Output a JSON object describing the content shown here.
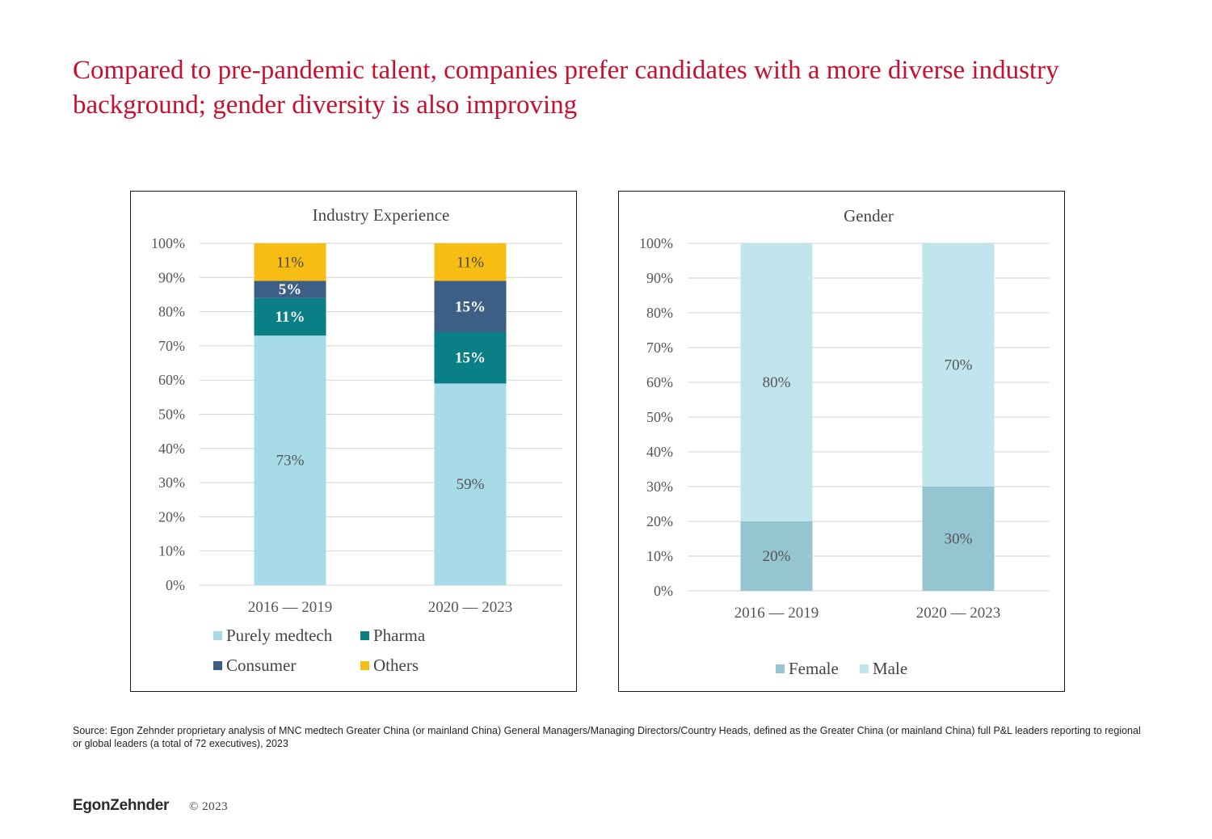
{
  "slide": {
    "title": "Compared to pre-pandemic talent, companies prefer candidates with a more diverse industry background; gender diversity is also improving",
    "source": "Source: Egon Zehnder proprietary analysis of MNC medtech Greater China (or mainland China) General Managers/Managing Directors/Country Heads, defined as the Greater China (or mainland China) full P&L leaders reporting to regional or global leaders (a total of 72 executives), 2023",
    "brand": "EgonZehnder",
    "copyright": "© 2023"
  },
  "chart_data": [
    {
      "type": "bar",
      "stacked": true,
      "title": "Industry Experience",
      "categories": [
        "2016 — 2019",
        "2020 — 2023"
      ],
      "series": [
        {
          "name": "Purely medtech",
          "values": [
            73,
            59
          ],
          "labels": [
            "73%",
            "59%"
          ],
          "color": "#a8dbe8",
          "label_color": "#555555"
        },
        {
          "name": "Pharma",
          "values": [
            11,
            15
          ],
          "labels": [
            "11%",
            "15%"
          ],
          "color": "#0a7f86",
          "label_color": "#ffffff"
        },
        {
          "name": "Consumer",
          "values": [
            5,
            15
          ],
          "labels": [
            "5%",
            "15%"
          ],
          "color": "#3d5f86",
          "label_color": "#ffffff"
        },
        {
          "name": "Others",
          "values": [
            11,
            11
          ],
          "labels": [
            "11%",
            "11%"
          ],
          "color": "#f8bd12",
          "label_color": "#444444"
        }
      ],
      "ylim": [
        0,
        100
      ],
      "yticks": [
        "0%",
        "10%",
        "20%",
        "30%",
        "40%",
        "50%",
        "60%",
        "70%",
        "80%",
        "90%",
        "100%"
      ],
      "grid": true,
      "legend_position": "bottom",
      "legend": [
        {
          "name": "Purely medtech",
          "color": "#a8dbe8"
        },
        {
          "name": "Pharma",
          "color": "#0a7f86"
        },
        {
          "name": "Consumer",
          "color": "#3d5f86"
        },
        {
          "name": "Others",
          "color": "#f8bd12"
        }
      ]
    },
    {
      "type": "bar",
      "stacked": true,
      "title": "Gender",
      "categories": [
        "2016 — 2019",
        "2020 — 2023"
      ],
      "series": [
        {
          "name": "Female",
          "values": [
            20,
            30
          ],
          "labels": [
            "20%",
            "30%"
          ],
          "color": "#94c5d1",
          "label_color": "#555555"
        },
        {
          "name": "Male",
          "values": [
            80,
            70
          ],
          "labels": [
            "80%",
            "70%"
          ],
          "color": "#c0e5ec",
          "label_color": "#555555"
        }
      ],
      "ylim": [
        0,
        100
      ],
      "yticks": [
        "0%",
        "10%",
        "20%",
        "30%",
        "40%",
        "50%",
        "60%",
        "70%",
        "80%",
        "90%",
        "100%"
      ],
      "grid": true,
      "legend_position": "bottom",
      "legend": [
        {
          "name": "Female",
          "color": "#94c5d1"
        },
        {
          "name": "Male",
          "color": "#c0e5ec"
        }
      ]
    }
  ]
}
